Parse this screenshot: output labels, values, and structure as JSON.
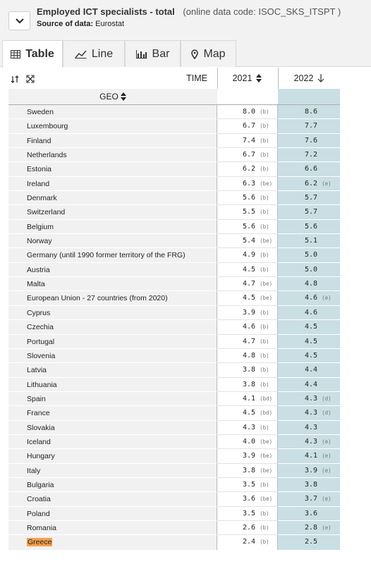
{
  "header": {
    "title": "Employed ICT specialists - total",
    "code": "(online data code: ISOC_SKS_ITSPT )",
    "source_label": "Source of data:",
    "source_value": "Eurostat"
  },
  "tabs": [
    {
      "label": "Table",
      "icon": "table-icon",
      "active": true
    },
    {
      "label": "Line",
      "icon": "line-chart-icon",
      "active": false
    },
    {
      "label": "Bar",
      "icon": "bar-chart-icon",
      "active": false
    },
    {
      "label": "Map",
      "icon": "map-pin-icon",
      "active": false
    }
  ],
  "table": {
    "time_label": "TIME",
    "geo_label": "GEO",
    "years": [
      "2021",
      "2022"
    ],
    "highlight_color": "#f5a14c",
    "rows": [
      {
        "geo": "Sweden",
        "v2021": "8.0",
        "f2021": "(b)",
        "v2022": "8.6",
        "f2022": ""
      },
      {
        "geo": "Luxembourg",
        "v2021": "6.7",
        "f2021": "(b)",
        "v2022": "7.7",
        "f2022": ""
      },
      {
        "geo": "Finland",
        "v2021": "7.4",
        "f2021": "(b)",
        "v2022": "7.6",
        "f2022": ""
      },
      {
        "geo": "Netherlands",
        "v2021": "6.7",
        "f2021": "(b)",
        "v2022": "7.2",
        "f2022": ""
      },
      {
        "geo": "Estonia",
        "v2021": "6.2",
        "f2021": "(b)",
        "v2022": "6.6",
        "f2022": ""
      },
      {
        "geo": "Ireland",
        "v2021": "6.3",
        "f2021": "(be)",
        "v2022": "6.2",
        "f2022": "(e)"
      },
      {
        "geo": "Denmark",
        "v2021": "5.6",
        "f2021": "(b)",
        "v2022": "5.7",
        "f2022": ""
      },
      {
        "geo": "Switzerland",
        "v2021": "5.5",
        "f2021": "(b)",
        "v2022": "5.7",
        "f2022": ""
      },
      {
        "geo": "Belgium",
        "v2021": "5.6",
        "f2021": "(b)",
        "v2022": "5.6",
        "f2022": ""
      },
      {
        "geo": "Norway",
        "v2021": "5.4",
        "f2021": "(be)",
        "v2022": "5.1",
        "f2022": ""
      },
      {
        "geo": "Germany (until 1990 former territory of the FRG)",
        "v2021": "4.9",
        "f2021": "(b)",
        "v2022": "5.0",
        "f2022": ""
      },
      {
        "geo": "Austria",
        "v2021": "4.5",
        "f2021": "(b)",
        "v2022": "5.0",
        "f2022": ""
      },
      {
        "geo": "Malta",
        "v2021": "4.7",
        "f2021": "(be)",
        "v2022": "4.8",
        "f2022": ""
      },
      {
        "geo": "European Union - 27 countries (from 2020)",
        "v2021": "4.5",
        "f2021": "(be)",
        "v2022": "4.6",
        "f2022": "(e)"
      },
      {
        "geo": "Cyprus",
        "v2021": "3.9",
        "f2021": "(b)",
        "v2022": "4.6",
        "f2022": ""
      },
      {
        "geo": "Czechia",
        "v2021": "4.6",
        "f2021": "(b)",
        "v2022": "4.5",
        "f2022": ""
      },
      {
        "geo": "Portugal",
        "v2021": "4.7",
        "f2021": "(b)",
        "v2022": "4.5",
        "f2022": ""
      },
      {
        "geo": "Slovenia",
        "v2021": "4.8",
        "f2021": "(b)",
        "v2022": "4.5",
        "f2022": ""
      },
      {
        "geo": "Latvia",
        "v2021": "3.8",
        "f2021": "(b)",
        "v2022": "4.4",
        "f2022": ""
      },
      {
        "geo": "Lithuania",
        "v2021": "3.8",
        "f2021": "(b)",
        "v2022": "4.4",
        "f2022": ""
      },
      {
        "geo": "Spain",
        "v2021": "4.1",
        "f2021": "(bd)",
        "v2022": "4.3",
        "f2022": "(d)"
      },
      {
        "geo": "France",
        "v2021": "4.5",
        "f2021": "(bd)",
        "v2022": "4.3",
        "f2022": "(d)"
      },
      {
        "geo": "Slovakia",
        "v2021": "4.3",
        "f2021": "(b)",
        "v2022": "4.3",
        "f2022": ""
      },
      {
        "geo": "Iceland",
        "v2021": "4.0",
        "f2021": "(be)",
        "v2022": "4.3",
        "f2022": "(e)"
      },
      {
        "geo": "Hungary",
        "v2021": "3.9",
        "f2021": "(be)",
        "v2022": "4.1",
        "f2022": "(e)"
      },
      {
        "geo": "Italy",
        "v2021": "3.8",
        "f2021": "(be)",
        "v2022": "3.9",
        "f2022": "(e)"
      },
      {
        "geo": "Bulgaria",
        "v2021": "3.5",
        "f2021": "(b)",
        "v2022": "3.8",
        "f2022": ""
      },
      {
        "geo": "Croatia",
        "v2021": "3.6",
        "f2021": "(be)",
        "v2022": "3.7",
        "f2022": "(e)"
      },
      {
        "geo": "Poland",
        "v2021": "3.5",
        "f2021": "(b)",
        "v2022": "3.6",
        "f2022": ""
      },
      {
        "geo": "Romania",
        "v2021": "2.6",
        "f2021": "(b)",
        "v2022": "2.8",
        "f2022": "(e)"
      },
      {
        "geo": "Greece",
        "v2021": "2.4",
        "f2021": "(b)",
        "v2022": "2.5",
        "f2022": "",
        "highlight": true
      }
    ]
  }
}
